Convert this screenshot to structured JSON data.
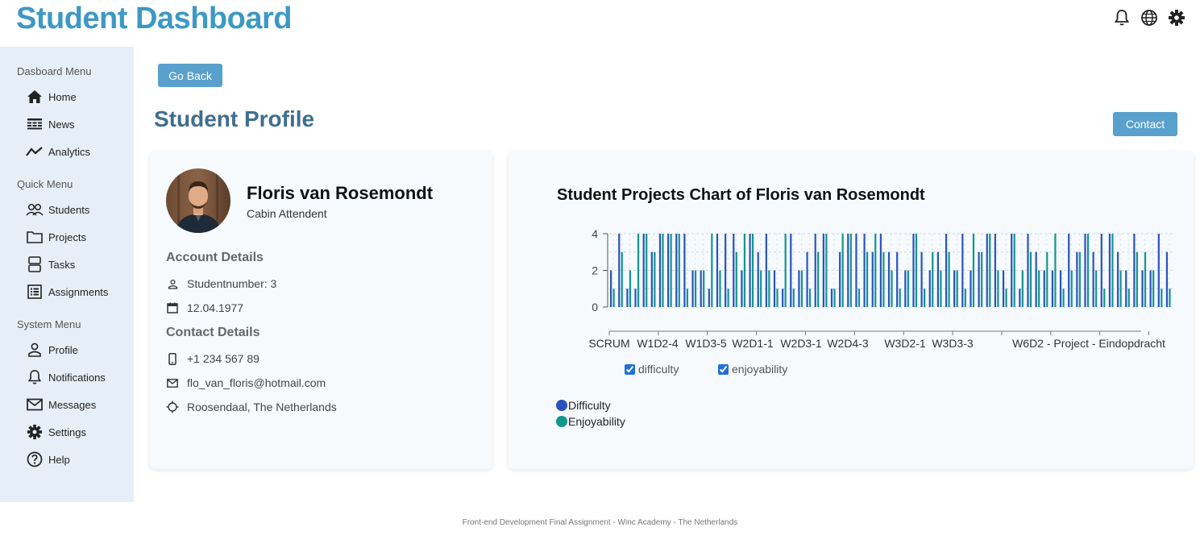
{
  "app": {
    "title": "Student Dashboard"
  },
  "header_icons": [
    "bell-icon",
    "globe-icon",
    "gear-icon"
  ],
  "sidebar": {
    "groups": [
      {
        "heading": "Dasboard Menu",
        "items": [
          {
            "label": "Home",
            "icon": "home-icon"
          },
          {
            "label": "News",
            "icon": "news-icon"
          },
          {
            "label": "Analytics",
            "icon": "analytics-icon"
          }
        ]
      },
      {
        "heading": "Quick Menu",
        "items": [
          {
            "label": "Students",
            "icon": "students-icon"
          },
          {
            "label": "Projects",
            "icon": "folder-icon"
          },
          {
            "label": "Tasks",
            "icon": "tasks-icon"
          },
          {
            "label": "Assignments",
            "icon": "assignments-icon"
          }
        ]
      },
      {
        "heading": "System Menu",
        "items": [
          {
            "label": "Profile",
            "icon": "profile-icon"
          },
          {
            "label": "Notifications",
            "icon": "bell-icon"
          },
          {
            "label": "Messages",
            "icon": "mail-icon"
          },
          {
            "label": "Settings",
            "icon": "gear-icon"
          },
          {
            "label": "Help",
            "icon": "help-icon"
          }
        ]
      }
    ]
  },
  "main": {
    "back_label": "Go Back",
    "page_title": "Student Profile",
    "contact_label": "Contact"
  },
  "profile": {
    "name": "Floris van Rosemondt",
    "job": "Cabin Attendent",
    "account_heading": "Account Details",
    "studentnumber": "Studentnumber: 3",
    "birthdate": "12.04.1977",
    "contact_heading": "Contact Details",
    "phone": "+1 234 567 89",
    "email": "flo_van_floris@hotmail.com",
    "location": "Roosendaal, The Netherlands"
  },
  "chart_data": {
    "type": "bar",
    "title": "Student Projects Chart of Floris van Rosemondt",
    "ylim": [
      0,
      4
    ],
    "yticks": [
      0,
      2,
      4
    ],
    "tick_labels": [
      "SCRUM",
      "W1D2-4",
      "W1D3-5",
      "W2D1-1",
      "W2D3-1",
      "W2D4-3",
      "W3D2-1",
      "W3D3-3",
      "W6D2 - Project - Eindopdracht"
    ],
    "grid": true,
    "colors": {
      "difficulty": "#2a52be",
      "enjoyability": "#11968a"
    },
    "toggles": [
      {
        "label": "difficulty",
        "checked": true
      },
      {
        "label": "enjoyability",
        "checked": true
      }
    ],
    "legend": [
      "Difficulty",
      "Enjoyability"
    ],
    "series": [
      {
        "key": "difficulty",
        "values": [
          2,
          4,
          1,
          1,
          4,
          3,
          4,
          4,
          4,
          4,
          2,
          2,
          1,
          4,
          4,
          4,
          2,
          4,
          3,
          4,
          2,
          1,
          4,
          2,
          3,
          4,
          4,
          1,
          3,
          4,
          4,
          4,
          3,
          4,
          3,
          3,
          2,
          4,
          3,
          2,
          3,
          4,
          2,
          4,
          2,
          3,
          4,
          4,
          2,
          4,
          1,
          4,
          3,
          2,
          2,
          2,
          4,
          3,
          4,
          3,
          4,
          4,
          3,
          2,
          4,
          2,
          2,
          4,
          3
        ]
      },
      {
        "key": "enjoyability",
        "values": [
          1,
          3,
          2,
          4,
          4,
          3,
          4,
          4,
          4,
          1,
          2,
          2,
          4,
          2,
          1,
          3,
          4,
          4,
          2,
          2,
          1,
          4,
          1,
          2,
          1,
          3,
          4,
          1,
          4,
          4,
          1,
          3,
          4,
          3,
          2,
          1,
          2,
          4,
          1,
          3,
          2,
          3,
          2,
          1,
          4,
          3,
          4,
          2,
          1,
          4,
          2,
          3,
          2,
          3,
          4,
          1,
          2,
          3,
          4,
          2,
          1,
          4,
          2,
          1,
          3,
          3,
          2,
          1,
          1
        ]
      }
    ]
  },
  "footer": {
    "text": "Front-end Development Final Assignment - Winc Academy - The Netherlands"
  }
}
